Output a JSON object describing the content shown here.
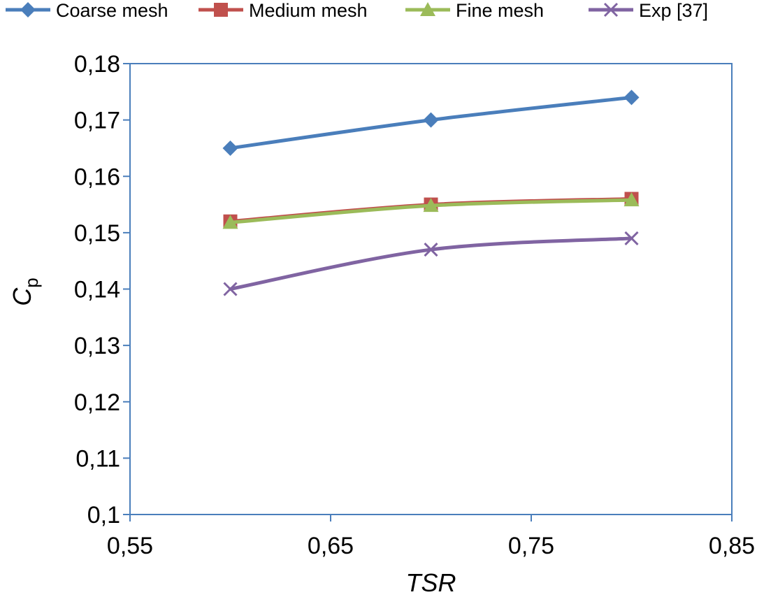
{
  "chart_data": {
    "type": "line",
    "x": [
      0.6,
      0.7,
      0.8
    ],
    "xlim": [
      0.55,
      0.85
    ],
    "ylim": [
      0.1,
      0.18
    ],
    "xticks": [
      "0,55",
      "0,65",
      "0,75",
      "0,85"
    ],
    "xtick_values": [
      0.55,
      0.65,
      0.75,
      0.85
    ],
    "yticks": [
      "0,1",
      "0,11",
      "0,12",
      "0,13",
      "0,14",
      "0,15",
      "0,16",
      "0,17",
      "0,18"
    ],
    "ytick_values": [
      0.1,
      0.11,
      0.12,
      0.13,
      0.14,
      0.15,
      0.16,
      0.17,
      0.18
    ],
    "xlabel": "TSR",
    "ylabel": "C",
    "ylabel_sub": "p",
    "grid": false,
    "legend_position": "top",
    "series": [
      {
        "name": "Coarse mesh",
        "values": [
          0.165,
          0.17,
          0.174
        ],
        "color": "#4a7ebb",
        "marker": "diamond"
      },
      {
        "name": "Medium mesh",
        "values": [
          0.152,
          0.155,
          0.156
        ],
        "color": "#c0504d",
        "marker": "square"
      },
      {
        "name": "Fine mesh",
        "values": [
          0.1518,
          0.1548,
          0.1558
        ],
        "color": "#9bbb59",
        "marker": "triangle"
      },
      {
        "name": "Exp [37]",
        "values": [
          0.14,
          0.147,
          0.149
        ],
        "color": "#8064a2",
        "marker": "x"
      }
    ]
  }
}
